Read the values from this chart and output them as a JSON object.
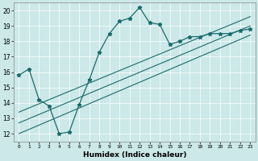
{
  "xlabel": "Humidex (Indice chaleur)",
  "ylabel": "",
  "bg_color": "#cce8e8",
  "line_color": "#1a6b6b",
  "xlim": [
    -0.5,
    23.5
  ],
  "ylim": [
    11.5,
    20.5
  ],
  "xticks": [
    0,
    1,
    2,
    3,
    4,
    5,
    6,
    7,
    8,
    9,
    10,
    11,
    12,
    13,
    14,
    15,
    16,
    17,
    18,
    19,
    20,
    21,
    22,
    23
  ],
  "yticks": [
    12,
    13,
    14,
    15,
    16,
    17,
    18,
    19,
    20
  ],
  "main_x": [
    0,
    1,
    2,
    3,
    4,
    5,
    6,
    7,
    8,
    9,
    10,
    11,
    12,
    13,
    14,
    15,
    16,
    17,
    18,
    19,
    20,
    21,
    22,
    23
  ],
  "main_y": [
    15.8,
    16.2,
    14.2,
    13.8,
    12.0,
    12.1,
    13.9,
    15.5,
    17.3,
    18.5,
    19.3,
    19.5,
    20.2,
    19.2,
    19.1,
    17.8,
    18.0,
    18.3,
    18.3,
    18.5,
    18.5,
    18.5,
    18.7,
    18.8
  ],
  "line1_x": [
    0,
    23
  ],
  "line1_y": [
    12.0,
    18.4
  ],
  "line2_x": [
    0,
    23
  ],
  "line2_y": [
    12.7,
    19.0
  ],
  "line3_x": [
    0,
    23
  ],
  "line3_y": [
    13.4,
    19.6
  ]
}
